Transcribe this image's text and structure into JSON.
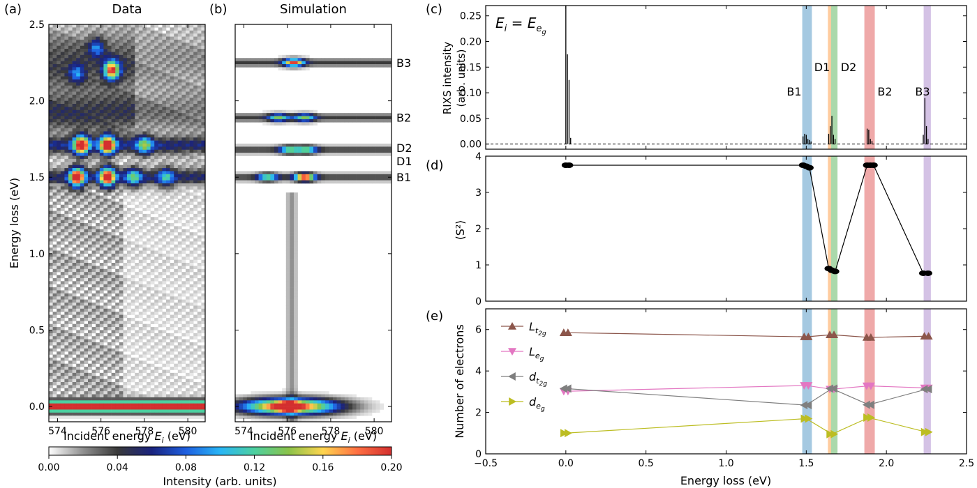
{
  "panels": {
    "a": {
      "letter": "(a)",
      "title": "Data"
    },
    "b": {
      "letter": "(b)",
      "title": "Simulation"
    },
    "c": {
      "letter": "(c)",
      "ylabel": "RIXS intensity\n(arb. units)",
      "annotation": "E_i = E_e_g"
    },
    "d": {
      "letter": "(d)",
      "ylabel": "⟨S²⟩"
    },
    "e": {
      "letter": "(e)",
      "ylabel": "Number of electrons"
    }
  },
  "xlabel_left": "Incident energy E_i (eV)",
  "xlabel_right": "Energy loss (eV)",
  "ylabel_left": "Energy loss (eV)",
  "colorbar": {
    "label": "Intensity (arb. units)",
    "ticks": [
      "0.00",
      "0.04",
      "0.08",
      "0.12",
      "0.16",
      "0.20"
    ],
    "colors": [
      "#ffffff",
      "#909090",
      "#3a3a3a",
      "#1a237e",
      "#1e5fe0",
      "#29b6f6",
      "#4dd0a0",
      "#8bc34a",
      "#ffd54f",
      "#ff7043",
      "#d32f2f"
    ]
  },
  "band_labels": [
    {
      "name": "B3",
      "energy": 2.25,
      "color": "#9467bd"
    },
    {
      "name": "B2",
      "energy": 1.89,
      "color": "#d62728"
    },
    {
      "name": "D2",
      "energy": 1.68,
      "color": "#2ca02c"
    },
    {
      "name": "D1",
      "energy": 1.62,
      "color": "#ff7f0e"
    },
    {
      "name": "B1",
      "energy": 1.5,
      "color": "#1f77b4"
    }
  ],
  "chart_data": [
    {
      "type": "heatmap",
      "panel": "a",
      "title": "Data",
      "xlabel": "Incident energy E_i (eV)",
      "ylabel": "Energy loss (eV)",
      "xlim": [
        573.6,
        580.8
      ],
      "ylim": [
        -0.1,
        2.5
      ],
      "xticks": [
        "574",
        "576",
        "578",
        "580"
      ],
      "yticks": [
        "0.0",
        "0.5",
        "1.0",
        "1.5",
        "2.0",
        "2.5"
      ],
      "peaks": [
        {
          "x": 574.9,
          "y": 1.5,
          "value": 0.19
        },
        {
          "x": 576.3,
          "y": 1.5,
          "value": 0.19
        },
        {
          "x": 577.5,
          "y": 1.5,
          "value": 0.08
        },
        {
          "x": 579.0,
          "y": 1.5,
          "value": 0.07
        },
        {
          "x": 575.1,
          "y": 1.71,
          "value": 0.19
        },
        {
          "x": 576.3,
          "y": 1.71,
          "value": 0.19
        },
        {
          "x": 578.0,
          "y": 1.71,
          "value": 0.09
        },
        {
          "x": 574.9,
          "y": 2.18,
          "value": 0.06
        },
        {
          "x": 576.5,
          "y": 2.2,
          "value": 0.17
        },
        {
          "x": 575.8,
          "y": 2.35,
          "value": 0.06
        }
      ]
    },
    {
      "type": "heatmap",
      "panel": "b",
      "title": "Simulation",
      "xlabel": "Incident energy E_i (eV)",
      "xlim": [
        573.6,
        580.8
      ],
      "ylim": [
        -0.1,
        2.5
      ],
      "xticks": [
        "574",
        "576",
        "578",
        "580"
      ],
      "peaks": [
        {
          "x": 576.3,
          "y": 2.25,
          "value": 0.16
        },
        {
          "x": 575.6,
          "y": 1.89,
          "value": 0.1
        },
        {
          "x": 576.8,
          "y": 1.89,
          "value": 0.1
        },
        {
          "x": 576.1,
          "y": 1.68,
          "value": 0.1
        },
        {
          "x": 576.9,
          "y": 1.68,
          "value": 0.1
        },
        {
          "x": 575.1,
          "y": 1.5,
          "value": 0.1
        },
        {
          "x": 576.8,
          "y": 1.5,
          "value": 0.18
        },
        {
          "x": 576.0,
          "y": 0.0,
          "value": 0.2
        }
      ]
    },
    {
      "type": "bar",
      "panel": "c",
      "ylabel": "RIXS intensity (arb. units)",
      "xlim": [
        -0.5,
        2.5
      ],
      "ylim": [
        -0.01,
        0.27
      ],
      "yticks": [
        "0.00",
        "0.05",
        "0.10",
        "0.15",
        "0.20",
        "0.25"
      ],
      "x": [
        0.0,
        0.01,
        0.02,
        0.03,
        1.48,
        1.49,
        1.5,
        1.51,
        1.52,
        1.53,
        1.64,
        1.65,
        1.66,
        1.67,
        1.68,
        1.88,
        1.89,
        1.9,
        1.91,
        2.23,
        2.24,
        2.25,
        2.26
      ],
      "values": [
        0.27,
        0.175,
        0.125,
        0.012,
        0.015,
        0.02,
        0.018,
        0.01,
        0.008,
        0.005,
        0.02,
        0.035,
        0.055,
        0.018,
        0.01,
        0.03,
        0.028,
        0.01,
        0.006,
        0.018,
        0.09,
        0.035,
        0.01
      ],
      "baseline": 0.0
    },
    {
      "type": "line",
      "panel": "d",
      "ylabel": "⟨S²⟩",
      "xlim": [
        -0.5,
        2.5
      ],
      "ylim": [
        0,
        4
      ],
      "yticks": [
        "0",
        "1",
        "2",
        "3",
        "4"
      ],
      "x": [
        0.0,
        0.02,
        1.48,
        1.5,
        1.52,
        1.64,
        1.66,
        1.68,
        1.88,
        1.9,
        1.92,
        2.23,
        2.26
      ],
      "values": [
        3.75,
        3.75,
        3.75,
        3.72,
        3.68,
        0.9,
        0.85,
        0.82,
        3.75,
        3.75,
        3.75,
        0.77,
        0.77
      ]
    },
    {
      "type": "line",
      "panel": "e",
      "ylabel": "Number of electrons",
      "xlabel": "Energy loss (eV)",
      "xlim": [
        -0.5,
        2.5
      ],
      "ylim": [
        0,
        7
      ],
      "xticks": [
        "−0.5",
        "0.0",
        "0.5",
        "1.0",
        "1.5",
        "2.0",
        "2.5"
      ],
      "yticks": [
        "0",
        "2",
        "4",
        "6"
      ],
      "x": [
        0.0,
        1.5,
        1.66,
        1.89,
        2.25
      ],
      "series": [
        {
          "name": "L_t2g",
          "marker": "triangle-up",
          "color": "#8c564b",
          "values": [
            5.85,
            5.65,
            5.75,
            5.62,
            5.68
          ]
        },
        {
          "name": "L_eg",
          "marker": "triangle-down",
          "color": "#e377c2",
          "values": [
            3.02,
            3.3,
            3.12,
            3.28,
            3.18
          ]
        },
        {
          "name": "d_t2g",
          "marker": "triangle-left",
          "color": "#7f7f7f",
          "values": [
            3.15,
            2.35,
            3.15,
            2.37,
            3.12
          ]
        },
        {
          "name": "d_eg",
          "marker": "triangle-right",
          "color": "#bcbd22",
          "values": [
            1.0,
            1.7,
            0.95,
            1.75,
            1.05
          ]
        }
      ],
      "legend": "top-left"
    }
  ],
  "bands": [
    {
      "name": "B1",
      "center": 1.505,
      "width": 0.06,
      "color": "#1f77b4"
    },
    {
      "name": "D1",
      "center": 1.645,
      "width": 0.02,
      "color": "#ff7f0e"
    },
    {
      "name": "D2",
      "center": 1.675,
      "width": 0.04,
      "color": "#2ca02c"
    },
    {
      "name": "B2",
      "center": 1.895,
      "width": 0.065,
      "color": "#d62728"
    },
    {
      "name": "B3",
      "center": 2.255,
      "width": 0.045,
      "color": "#9467bd"
    }
  ]
}
